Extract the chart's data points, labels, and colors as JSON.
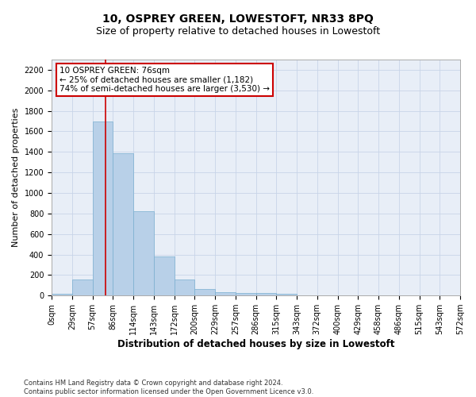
{
  "title": "10, OSPREY GREEN, LOWESTOFT, NR33 8PQ",
  "subtitle": "Size of property relative to detached houses in Lowestoft",
  "xlabel": "Distribution of detached houses by size in Lowestoft",
  "ylabel": "Number of detached properties",
  "bar_values": [
    20,
    155,
    1700,
    1390,
    825,
    380,
    160,
    65,
    35,
    28,
    28,
    18,
    0,
    0,
    0,
    0,
    0,
    0,
    0,
    0
  ],
  "bin_labels": [
    "0sqm",
    "29sqm",
    "57sqm",
    "86sqm",
    "114sqm",
    "143sqm",
    "172sqm",
    "200sqm",
    "229sqm",
    "257sqm",
    "286sqm",
    "315sqm",
    "343sqm",
    "372sqm",
    "400sqm",
    "429sqm",
    "458sqm",
    "486sqm",
    "515sqm",
    "543sqm",
    "572sqm"
  ],
  "bar_color": "#b8d0e8",
  "bar_edge_color": "#7aafd0",
  "marker_color": "#cc0000",
  "annotation_text": "10 OSPREY GREEN: 76sqm\n← 25% of detached houses are smaller (1,182)\n74% of semi-detached houses are larger (3,530) →",
  "annotation_box_color": "#ffffff",
  "annotation_box_edge_color": "#cc0000",
  "ylim": [
    0,
    2300
  ],
  "yticks": [
    0,
    200,
    400,
    600,
    800,
    1000,
    1200,
    1400,
    1600,
    1800,
    2000,
    2200
  ],
  "grid_color": "#c8d4e8",
  "bg_color": "#e8eef7",
  "footer_text": "Contains HM Land Registry data © Crown copyright and database right 2024.\nContains public sector information licensed under the Open Government Licence v3.0.",
  "title_fontsize": 10,
  "subtitle_fontsize": 9,
  "axis_label_fontsize": 8,
  "tick_fontsize": 7,
  "annotation_fontsize": 7.5,
  "footer_fontsize": 6
}
